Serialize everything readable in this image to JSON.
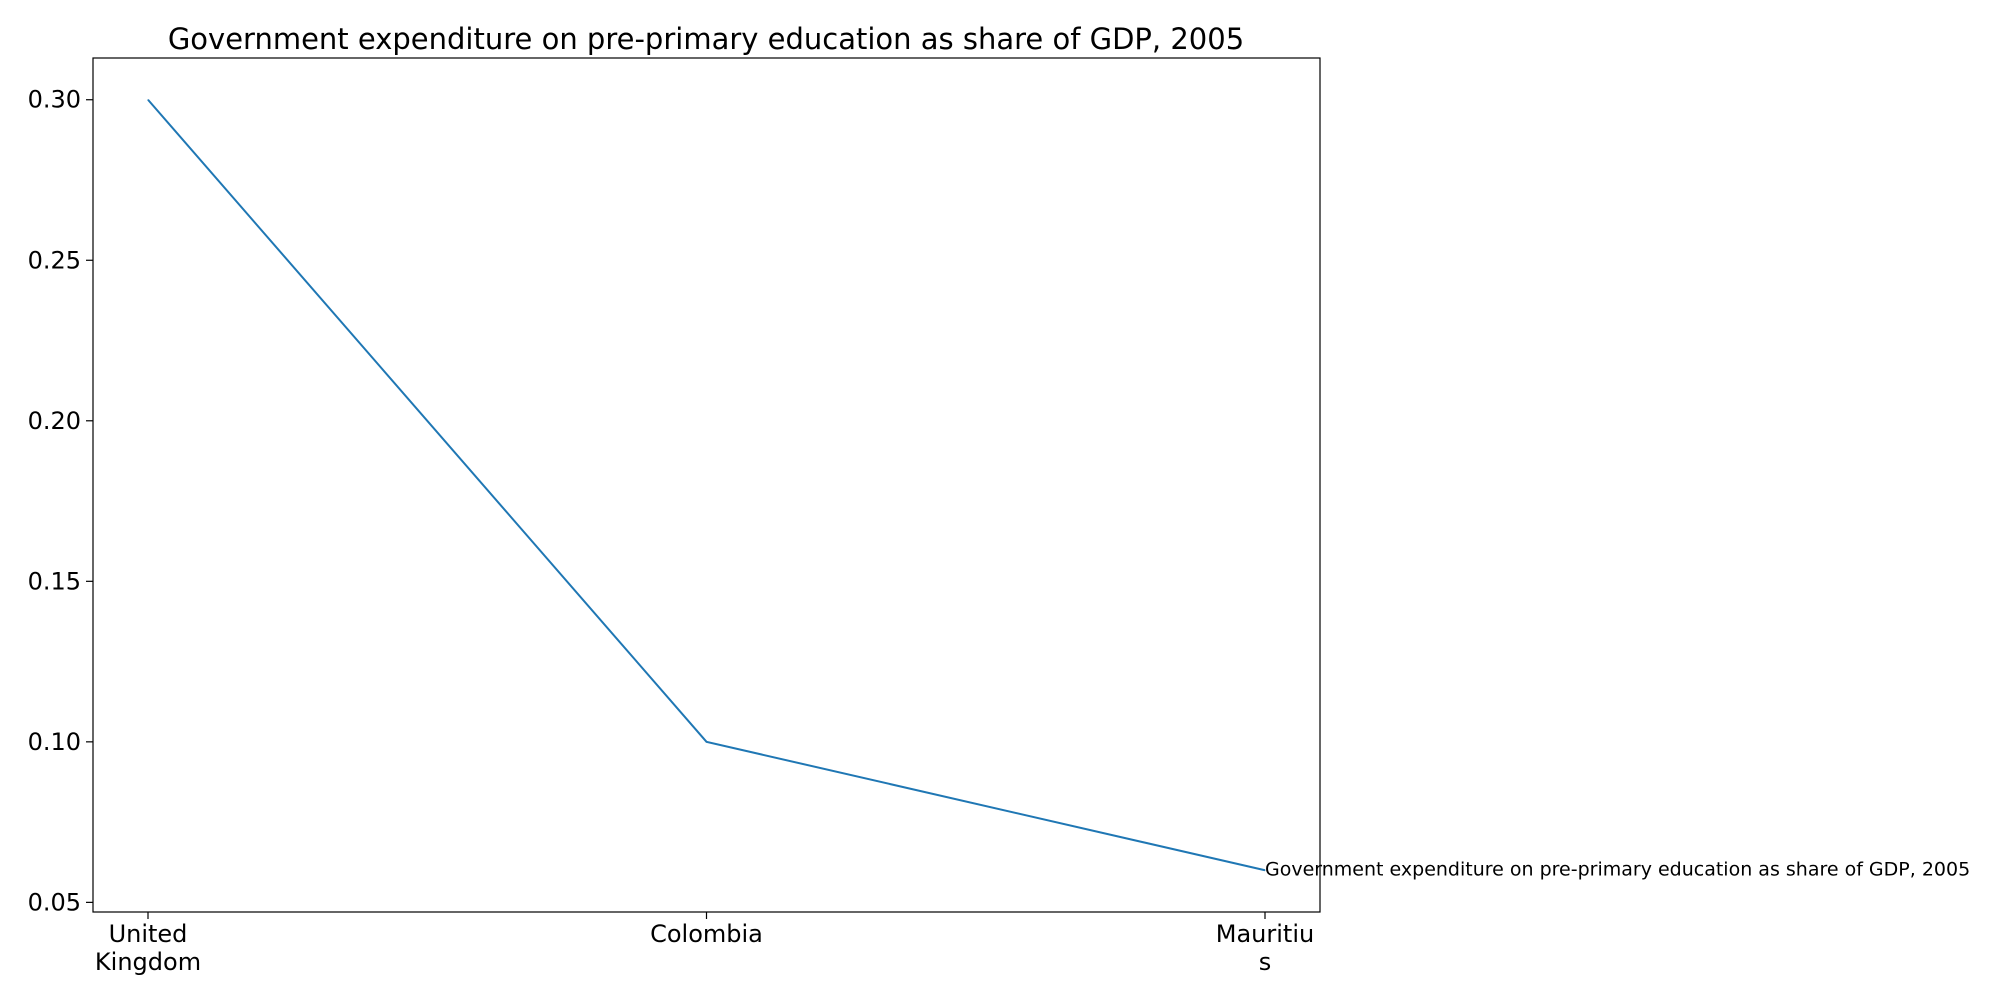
{
  "chart_data": {
    "type": "line",
    "title": "Government expenditure on pre-primary education as share of GDP, 2005",
    "xlabel": "",
    "ylabel": "",
    "categories": [
      [
        "United",
        "Kingdom"
      ],
      [
        "Colombia"
      ],
      [
        "Mauritiu",
        "s"
      ]
    ],
    "series": [
      {
        "name": "Government expenditure on pre-primary education as share of GDP, 2005",
        "values": [
          0.3,
          0.1,
          0.06
        ],
        "color": "#1f77b4"
      }
    ],
    "ylim": [
      0.047,
      0.313
    ],
    "yticks": [
      "0.05",
      "0.10",
      "0.15",
      "0.20",
      "0.25",
      "0.30"
    ],
    "grid": false,
    "legend": "none"
  }
}
